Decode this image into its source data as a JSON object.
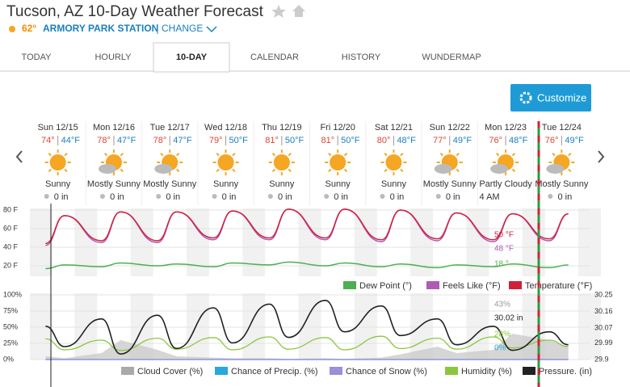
{
  "header": {
    "title": "Tucson, AZ 10-Day Weather Forecast",
    "current_temp": "62°",
    "station": "ARMORY PARK STATION",
    "change": "CHANGE"
  },
  "tabs": [
    "TODAY",
    "HOURLY",
    "10-DAY",
    "CALENDAR",
    "HISTORY",
    "WUNDERMAP"
  ],
  "active_tab": 2,
  "customize": "Customize",
  "days": [
    {
      "date": "Sun 12/15",
      "high": "74°",
      "low": "44°F",
      "condition": "Sunny",
      "precip": "0 in"
    },
    {
      "date": "Mon 12/16",
      "high": "78°",
      "low": "47°F",
      "condition": "Mostly Sunny",
      "precip": "0 in"
    },
    {
      "date": "Tue 12/17",
      "high": "78°",
      "low": "47°F",
      "condition": "Mostly Sunny",
      "precip": "0 in"
    },
    {
      "date": "Wed 12/18",
      "high": "79°",
      "low": "50°F",
      "condition": "Sunny",
      "precip": "0 in"
    },
    {
      "date": "Thu 12/19",
      "high": "81°",
      "low": "50°F",
      "condition": "Sunny",
      "precip": "0 in"
    },
    {
      "date": "Fri 12/20",
      "high": "81°",
      "low": "50°F",
      "condition": "Sunny",
      "precip": "0 in"
    },
    {
      "date": "Sat 12/21",
      "high": "80°",
      "low": "48°F",
      "condition": "Sunny",
      "precip": "0 in"
    },
    {
      "date": "Sun 12/22",
      "high": "77°",
      "low": "49°F",
      "condition": "Mostly Sunny",
      "precip": "0 in"
    },
    {
      "date": "Mon 12/23",
      "high": "76°",
      "low": "48°F",
      "condition": "Partly Cloudy",
      "precip": "4 AM"
    },
    {
      "date": "Tue 12/24",
      "high": "76°",
      "low": "49°F",
      "condition": "Mostly Sunny",
      "precip": "0 in"
    }
  ],
  "temp_chart": {
    "yticks": [
      {
        "value": 80,
        "label": "80 F"
      },
      {
        "value": 60,
        "label": "60 F"
      },
      {
        "value": 40,
        "label": "40 F"
      },
      {
        "value": 20,
        "label": "20 F"
      }
    ],
    "series": [
      {
        "name": "Dew Point (°)",
        "color": "#4caf50",
        "values": [
          17,
          21,
          19,
          23,
          20,
          22,
          19,
          23,
          21,
          24,
          20,
          23,
          19,
          22,
          18,
          21,
          19,
          22,
          18,
          21
        ]
      },
      {
        "name": "Feels Like (°F)",
        "color": "#b05ab5",
        "values": [
          42,
          74,
          45,
          78,
          45,
          78,
          48,
          79,
          48,
          81,
          48,
          81,
          46,
          80,
          47,
          77,
          46,
          76,
          47,
          76
        ]
      },
      {
        "name": "Temperature (°F)",
        "color": "#d0213b",
        "values": [
          44,
          74,
          47,
          78,
          47,
          78,
          50,
          79,
          50,
          81,
          50,
          81,
          48,
          80,
          49,
          77,
          48,
          76,
          49,
          76
        ]
      }
    ],
    "readouts": [
      "50 °F",
      "48 °F",
      "18 °"
    ]
  },
  "atmo_chart": {
    "yticks": [
      {
        "value": 100,
        "label": "100%"
      },
      {
        "value": 75,
        "label": "75%"
      },
      {
        "value": 50,
        "label": "50%"
      },
      {
        "value": 25,
        "label": "25%"
      },
      {
        "value": 0,
        "label": "0%"
      }
    ],
    "y2ticks": [
      30.25,
      30.16,
      30.07,
      29.99,
      29.9
    ],
    "series": [
      {
        "name": "Cloud Cover (%)",
        "color": "#aaaaaa",
        "values": [
          5,
          2,
          10,
          30,
          15,
          5,
          3,
          2,
          2,
          1,
          2,
          1,
          3,
          8,
          20,
          10,
          15,
          40,
          30,
          20
        ]
      },
      {
        "name": "Chance of Precip. (%)",
        "color": "#29a8dc",
        "values": [
          0,
          0,
          0,
          0,
          0,
          0,
          0,
          0,
          0,
          0,
          0,
          0,
          0,
          0,
          0,
          0,
          0,
          0,
          0,
          0
        ]
      },
      {
        "name": "Chance of Snow (%)",
        "color": "#9b8fd8",
        "values": [
          0,
          0,
          0,
          0,
          0,
          0,
          0,
          0,
          0,
          0,
          0,
          0,
          0,
          0,
          0,
          0,
          0,
          0,
          0,
          0
        ]
      },
      {
        "name": "Humidity (%)",
        "color": "#8cc63f",
        "values": [
          32,
          15,
          30,
          14,
          33,
          16,
          34,
          15,
          35,
          16,
          34,
          15,
          36,
          17,
          33,
          16,
          35,
          18,
          30,
          20
        ]
      },
      {
        "name": "Pressure. (in)",
        "color": "#222222",
        "axis": "y2",
        "values": [
          30.08,
          29.97,
          30.12,
          29.93,
          30.14,
          29.96,
          30.18,
          29.99,
          30.2,
          30.02,
          30.22,
          30.05,
          30.19,
          30.03,
          30.12,
          29.98,
          30.08,
          29.95,
          30.05,
          29.98
        ]
      }
    ],
    "readouts": [
      "43%",
      "30.02 in",
      "28%",
      "0%"
    ]
  }
}
